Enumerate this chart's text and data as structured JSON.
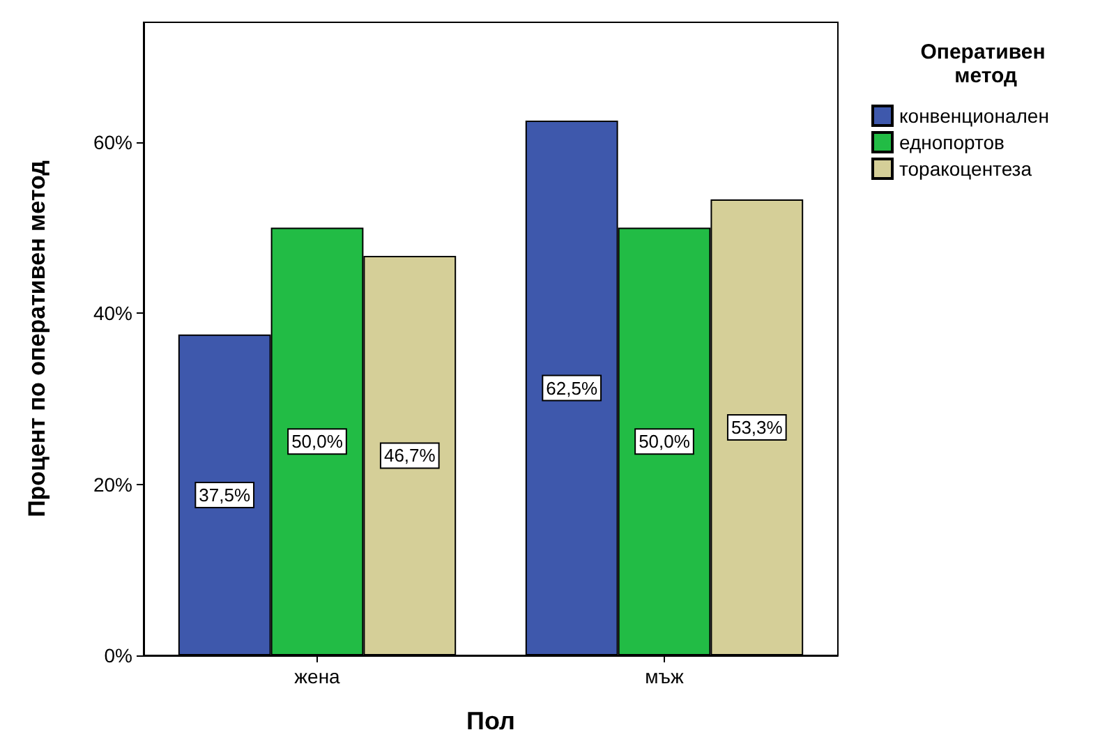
{
  "chart_data": {
    "type": "bar",
    "xlabel": "Пол",
    "ylabel": "Процент по оперативен метод",
    "legend_title": "Оперативен метод",
    "categories": [
      "жена",
      "мъж"
    ],
    "series": [
      {
        "name": "конвенционален",
        "color": "#3e58ac",
        "values": [
          37.5,
          62.5
        ],
        "value_labels": [
          "37,5%",
          "62,5%"
        ]
      },
      {
        "name": "еднопортов",
        "color": "#22bc45",
        "values": [
          50.0,
          50.0
        ],
        "value_labels": [
          "50,0%",
          "50,0%"
        ]
      },
      {
        "name": "торакоцентеза",
        "color": "#d5cf98",
        "values": [
          46.7,
          53.3
        ],
        "value_labels": [
          "46,7%",
          "53,3%"
        ]
      }
    ],
    "ylim": [
      0,
      74
    ],
    "yticks": [
      {
        "value": 0,
        "label": "0%"
      },
      {
        "value": 20,
        "label": "20%"
      },
      {
        "value": 40,
        "label": "40%"
      },
      {
        "value": 60,
        "label": "60%"
      }
    ],
    "grid": false,
    "legend": "right"
  }
}
